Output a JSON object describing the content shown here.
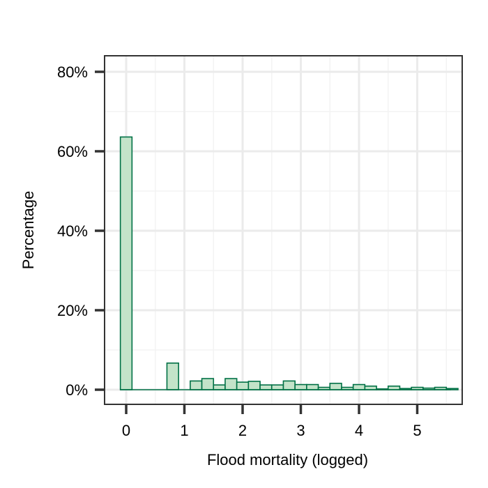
{
  "chart_data": {
    "type": "bar",
    "title": "",
    "xlabel": "Flood mortality (logged)",
    "ylabel": "Percentage",
    "xlim": [
      -0.36,
      5.6
    ],
    "ylim": [
      -0.036,
      0.8
    ],
    "x_ticks": [
      0,
      1,
      2,
      3,
      4,
      5
    ],
    "x_tick_labels": [
      "0",
      "1",
      "2",
      "3",
      "4",
      "5"
    ],
    "y_ticks": [
      0,
      0.2,
      0.4,
      0.6,
      0.8
    ],
    "y_tick_labels": [
      "0%",
      "20%",
      "40%",
      "60%",
      "80%"
    ],
    "bin_width": 0.2,
    "bins": [
      {
        "x0": -0.1,
        "x1": 0.1,
        "value": 0.636
      },
      {
        "x0": 0.1,
        "x1": 0.3,
        "value": 0
      },
      {
        "x0": 0.3,
        "x1": 0.5,
        "value": 0
      },
      {
        "x0": 0.5,
        "x1": 0.7,
        "value": 0
      },
      {
        "x0": 0.7,
        "x1": 0.9,
        "value": 0.067
      },
      {
        "x0": 0.9,
        "x1": 1.1,
        "value": 0
      },
      {
        "x0": 1.1,
        "x1": 1.3,
        "value": 0.022
      },
      {
        "x0": 1.3,
        "x1": 1.5,
        "value": 0.028
      },
      {
        "x0": 1.5,
        "x1": 1.7,
        "value": 0.012
      },
      {
        "x0": 1.7,
        "x1": 1.9,
        "value": 0.028
      },
      {
        "x0": 1.9,
        "x1": 2.1,
        "value": 0.019
      },
      {
        "x0": 2.1,
        "x1": 2.3,
        "value": 0.021
      },
      {
        "x0": 2.3,
        "x1": 2.5,
        "value": 0.012
      },
      {
        "x0": 2.5,
        "x1": 2.7,
        "value": 0.012
      },
      {
        "x0": 2.7,
        "x1": 2.9,
        "value": 0.022
      },
      {
        "x0": 2.9,
        "x1": 3.1,
        "value": 0.013
      },
      {
        "x0": 3.1,
        "x1": 3.3,
        "value": 0.013
      },
      {
        "x0": 3.3,
        "x1": 3.5,
        "value": 0.006
      },
      {
        "x0": 3.5,
        "x1": 3.7,
        "value": 0.016
      },
      {
        "x0": 3.7,
        "x1": 3.9,
        "value": 0.006
      },
      {
        "x0": 3.9,
        "x1": 4.1,
        "value": 0.013
      },
      {
        "x0": 4.1,
        "x1": 4.3,
        "value": 0.009
      },
      {
        "x0": 4.3,
        "x1": 4.5,
        "value": 0.002
      },
      {
        "x0": 4.5,
        "x1": 4.7,
        "value": 0.009
      },
      {
        "x0": 4.7,
        "x1": 4.9,
        "value": 0.003
      },
      {
        "x0": 4.9,
        "x1": 5.1,
        "value": 0.006
      },
      {
        "x0": 5.1,
        "x1": 5.3,
        "value": 0.004
      },
      {
        "x0": 5.3,
        "x1": 5.5,
        "value": 0.006
      },
      {
        "x0": 5.5,
        "x1": 5.7,
        "value": 0.003
      }
    ],
    "grid": true,
    "colors": {
      "bar_fill": "#c3e3c9",
      "bar_stroke": "#007045",
      "grid_major": "#ebebeb",
      "grid_minor": "#f3f3f3",
      "panel_border": "#333333",
      "tick_line": "#333333"
    }
  }
}
